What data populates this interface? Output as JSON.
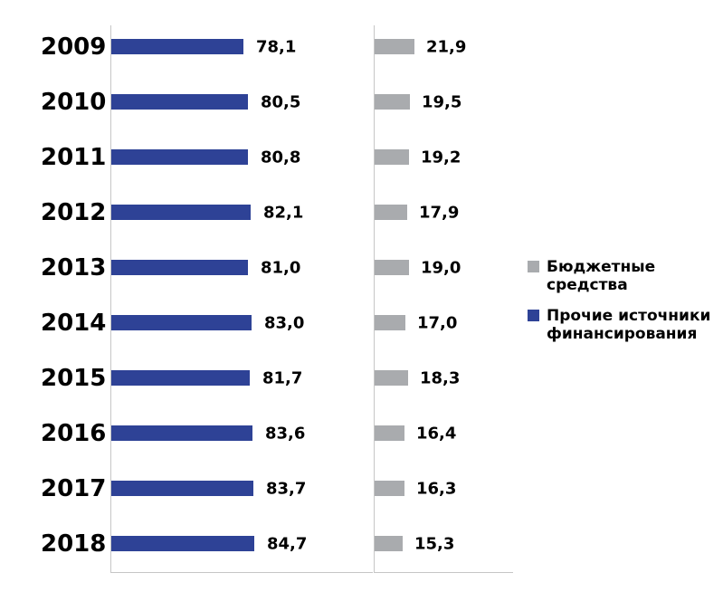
{
  "chart_data": {
    "type": "bar",
    "orientation": "horizontal",
    "title": "",
    "categories": [
      "2009",
      "2010",
      "2011",
      "2012",
      "2013",
      "2014",
      "2015",
      "2016",
      "2017",
      "2018"
    ],
    "series": [
      {
        "name": "Прочие источники финансирования",
        "panel": "left",
        "color": "#2E4296",
        "values": [
          78.1,
          80.5,
          80.8,
          82.1,
          81.0,
          83.0,
          81.7,
          83.6,
          83.7,
          84.7
        ],
        "labels": [
          "78,1",
          "80,5",
          "80,8",
          "82,1",
          "81,0",
          "83,0",
          "81,7",
          "83,6",
          "83,7",
          "84,7"
        ]
      },
      {
        "name": "Бюджетные средства",
        "panel": "right",
        "color": "#A9ABAE",
        "values": [
          21.9,
          19.5,
          19.2,
          17.9,
          19.0,
          17.0,
          18.3,
          16.4,
          16.3,
          15.3
        ],
        "labels": [
          "21,9",
          "19,5",
          "19,2",
          "17,9",
          "19,0",
          "17,0",
          "18,3",
          "16,4",
          "16,3",
          "15,3"
        ]
      }
    ],
    "legend": [
      {
        "label": "Бюджетные средства",
        "color": "#A9ABAE"
      },
      {
        "label": "Прочие источники финансирования",
        "color": "#2E4296"
      }
    ],
    "legend_position": "right",
    "grid": false,
    "value_axis_hidden": true,
    "axis_color": "#C6C6C6",
    "text_color": "#000000",
    "value_format": "comma-decimal, one decimal place"
  }
}
